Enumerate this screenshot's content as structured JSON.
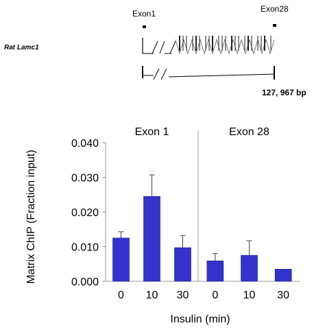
{
  "gene_map": {
    "gene_label": "Rat Lamc1",
    "exon_start_label": "Exon1",
    "exon_end_label": "Exon28",
    "length_label": "127, 967 bp"
  },
  "chart_data": {
    "type": "bar",
    "ylabel": "Matrix ChIP (Fraction input)",
    "xlabel": "Insulin (min)",
    "ylim": [
      0,
      0.04
    ],
    "yticks": [
      "0.000",
      "0.010",
      "0.020",
      "0.030",
      "0.040"
    ],
    "ytick_values": [
      0,
      0.01,
      0.02,
      0.03,
      0.04
    ],
    "bar_color": "#3333cc",
    "panels": [
      {
        "title": "Exon 1",
        "categories": [
          "0",
          "10",
          "30"
        ],
        "values": [
          0.0125,
          0.0245,
          0.0097
        ],
        "error": [
          0.0018,
          0.0062,
          0.0035
        ]
      },
      {
        "title": "Exon 28",
        "categories": [
          "0",
          "10",
          "30"
        ],
        "values": [
          0.0059,
          0.0075,
          0.0035
        ],
        "error": [
          0.0021,
          0.0042,
          0.0
        ]
      }
    ]
  }
}
